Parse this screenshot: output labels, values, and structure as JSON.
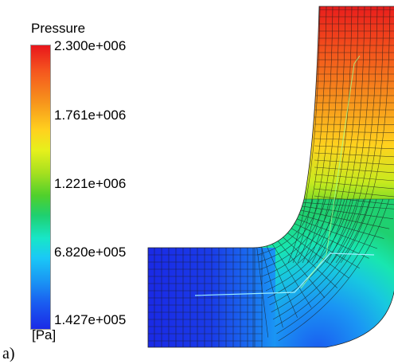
{
  "legend": {
    "title": "Pressure",
    "unit": "[Pa]",
    "ticks": [
      "2.300e+006",
      "1.761e+006",
      "1.221e+006",
      "6.820e+005",
      "1.427e+005"
    ]
  },
  "panel_label": "a)",
  "colors": {
    "max": "#e8161c",
    "high": "#f7941c",
    "mid_high": "#e6f01c",
    "mid": "#1fd070",
    "mid_low": "#18e6c8",
    "low": "#1a96f4",
    "min": "#1a2ae6"
  }
}
